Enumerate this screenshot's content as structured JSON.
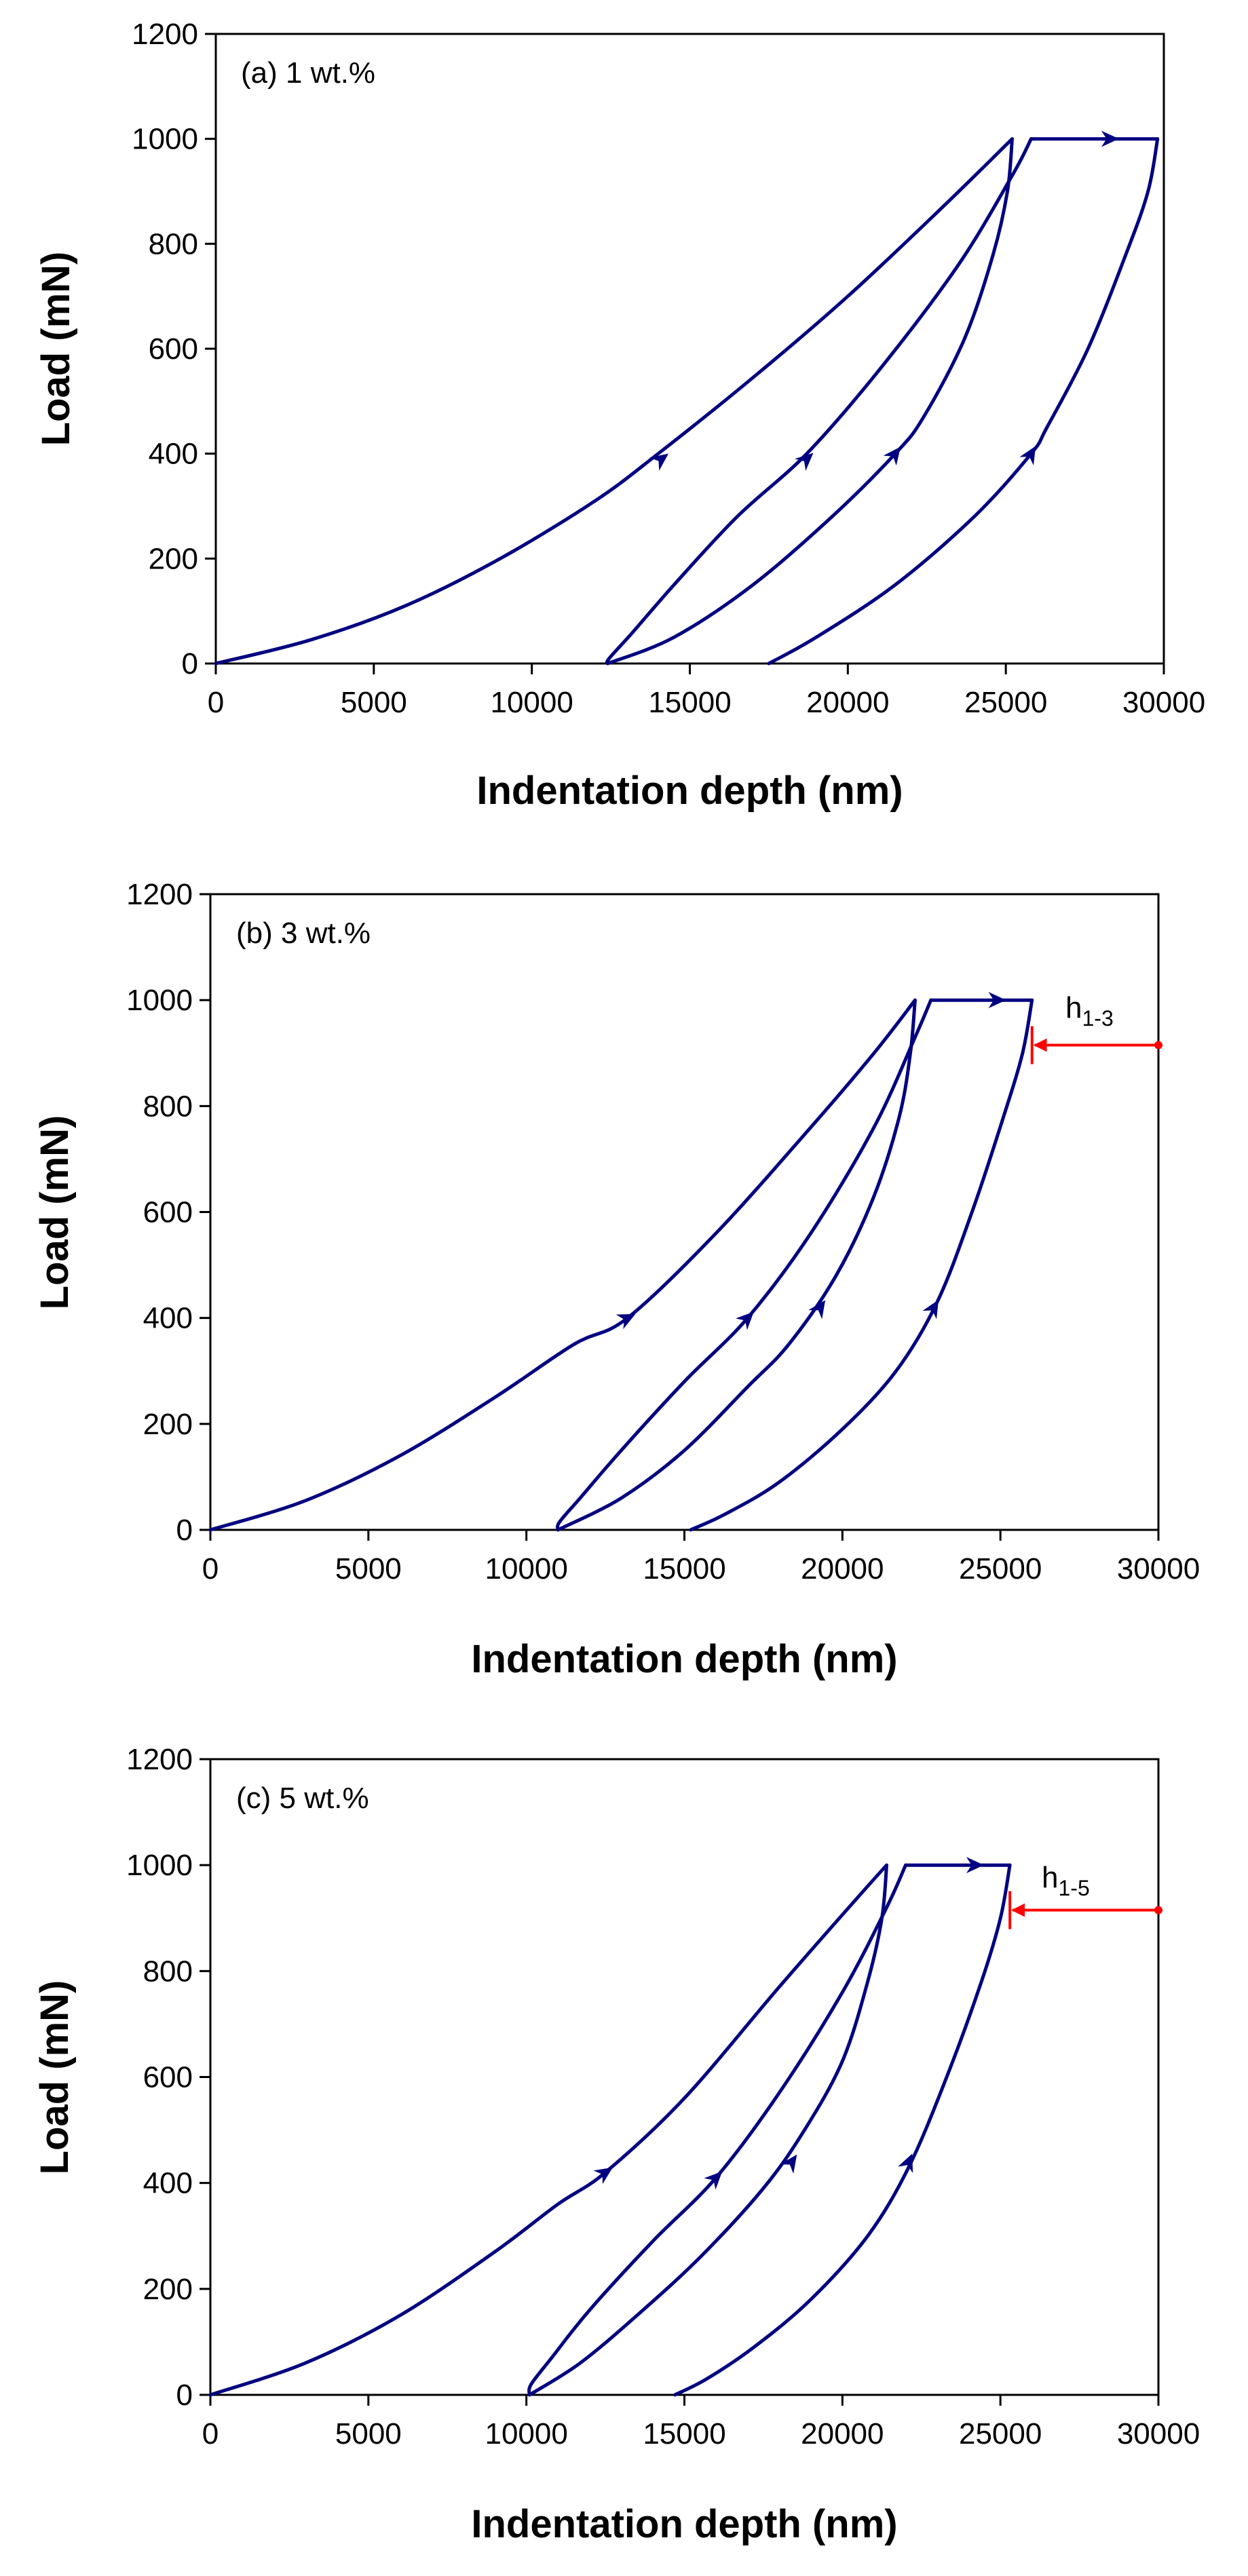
{
  "colors": {
    "curve": "#000080",
    "annotation": "#ff0000",
    "axis": "#000000",
    "background": "#ffffff"
  },
  "chart_data": [
    {
      "type": "line",
      "panel_label": "(a) 1 wt.%",
      "xlabel": "Indentation depth (nm)",
      "ylabel": "Load (mN)",
      "xlim": [
        0,
        30000
      ],
      "ylim": [
        0,
        1200
      ],
      "xticks": [
        "0",
        "5000",
        "10000",
        "15000",
        "20000",
        "25000",
        "30000"
      ],
      "yticks": [
        "0",
        "200",
        "400",
        "600",
        "800",
        "1000",
        "1200"
      ],
      "grid": false,
      "series": [
        {
          "name": "loading 1",
          "x": [
            0,
            3000,
            6000,
            9000,
            12000,
            14000,
            17000,
            20000,
            23000,
            25200
          ],
          "y": [
            0,
            45,
            110,
            200,
            310,
            400,
            545,
            700,
            870,
            1000
          ]
        },
        {
          "name": "unloading 1",
          "x": [
            25200,
            25050,
            24600,
            23700,
            22400,
            21500,
            19500,
            17000,
            14500,
            12400
          ],
          "y": [
            1000,
            900,
            780,
            620,
            470,
            400,
            280,
            150,
            50,
            0
          ]
        },
        {
          "name": "reloading 2",
          "x": [
            12400,
            12450,
            13200,
            14500,
            16500,
            18700,
            21000,
            23500,
            25200,
            25800
          ],
          "y": [
            0,
            10,
            60,
            150,
            280,
            400,
            560,
            760,
            930,
            1000
          ]
        },
        {
          "name": "hold",
          "x": [
            25800,
            28300,
            29800
          ],
          "y": [
            1000,
            1000,
            1000
          ]
        },
        {
          "name": "unloading 2",
          "x": [
            29800,
            29500,
            28800,
            27600,
            26300,
            25800,
            24000,
            21500,
            19000,
            17500
          ],
          "y": [
            1000,
            900,
            780,
            600,
            450,
            400,
            280,
            150,
            50,
            0
          ]
        }
      ],
      "arrows": [
        {
          "x": 14100,
          "y": 390,
          "direction": "forward"
        },
        {
          "x": 18700,
          "y": 390,
          "direction": "forward"
        },
        {
          "x": 28300,
          "y": 1000,
          "direction": "forward"
        },
        {
          "x": 21500,
          "y": 400,
          "direction": "reverse"
        },
        {
          "x": 25800,
          "y": 400,
          "direction": "reverse"
        }
      ],
      "annotation": null
    },
    {
      "type": "line",
      "panel_label": "(b) 3 wt.%",
      "xlabel": "Indentation depth (nm)",
      "ylabel": "Load (mN)",
      "xlim": [
        0,
        30000
      ],
      "ylim": [
        0,
        1200
      ],
      "xticks": [
        "0",
        "5000",
        "10000",
        "15000",
        "20000",
        "25000",
        "30000"
      ],
      "yticks": [
        "0",
        "200",
        "400",
        "600",
        "800",
        "1000",
        "1200"
      ],
      "grid": false,
      "series": [
        {
          "name": "loading 1",
          "x": [
            0,
            3000,
            6000,
            9000,
            11500,
            13200,
            16000,
            19000,
            21000,
            22300
          ],
          "y": [
            0,
            55,
            140,
            250,
            350,
            400,
            560,
            760,
            900,
            1000
          ]
        },
        {
          "name": "unloading 1",
          "x": [
            22300,
            22150,
            21800,
            21000,
            19800,
            18300,
            17000,
            15000,
            13000,
            11000
          ],
          "y": [
            1000,
            900,
            780,
            630,
            480,
            350,
            270,
            150,
            60,
            0
          ]
        },
        {
          "name": "reloading 2",
          "x": [
            11000,
            11050,
            11700,
            13000,
            15000,
            17000,
            19000,
            21000,
            22300,
            22800
          ],
          "y": [
            0,
            15,
            60,
            150,
            280,
            400,
            560,
            760,
            930,
            1000
          ]
        },
        {
          "name": "hold",
          "x": [
            22800,
            24900,
            26000
          ],
          "y": [
            1000,
            1000,
            1000
          ]
        },
        {
          "name": "unloading 2",
          "x": [
            26000,
            25700,
            25100,
            24100,
            23000,
            21700,
            20000,
            18000,
            16300,
            15200
          ],
          "y": [
            1000,
            900,
            780,
            600,
            430,
            300,
            190,
            90,
            30,
            0
          ]
        }
      ],
      "arrows": [
        {
          "x": 13200,
          "y": 400,
          "direction": "forward"
        },
        {
          "x": 17000,
          "y": 400,
          "direction": "forward"
        },
        {
          "x": 24900,
          "y": 1000,
          "direction": "forward"
        },
        {
          "x": 19300,
          "y": 420,
          "direction": "reverse"
        },
        {
          "x": 22900,
          "y": 420,
          "direction": "reverse"
        }
      ],
      "annotation": {
        "label_main": "h",
        "label_sub": "1-3",
        "x_start": 26000,
        "x_end": 30000,
        "y": 915
      }
    },
    {
      "type": "line",
      "panel_label": "(c) 5 wt.%",
      "xlabel": "Indentation depth (nm)",
      "ylabel": "Load (mN)",
      "xlim": [
        0,
        30000
      ],
      "ylim": [
        0,
        1200
      ],
      "xticks": [
        "0",
        "5000",
        "10000",
        "15000",
        "20000",
        "25000",
        "30000"
      ],
      "yticks": [
        "0",
        "200",
        "400",
        "600",
        "800",
        "1000",
        "1200"
      ],
      "grid": false,
      "series": [
        {
          "name": "loading 1",
          "x": [
            0,
            3000,
            6000,
            9000,
            11000,
            12500,
            15000,
            18000,
            20500,
            21400
          ],
          "y": [
            0,
            60,
            150,
            270,
            360,
            420,
            560,
            770,
            940,
            1000
          ]
        },
        {
          "name": "unloading 1",
          "x": [
            21400,
            21250,
            20800,
            20000,
            18800,
            17500,
            15500,
            13500,
            11700,
            10100
          ],
          "y": [
            1000,
            900,
            780,
            630,
            500,
            390,
            260,
            150,
            60,
            0
          ]
        },
        {
          "name": "reloading 2",
          "x": [
            10100,
            10150,
            10800,
            12000,
            14000,
            16000,
            18000,
            20000,
            21400,
            22000
          ],
          "y": [
            0,
            20,
            70,
            160,
            290,
            410,
            570,
            760,
            920,
            1000
          ]
        },
        {
          "name": "hold",
          "x": [
            22000,
            24200,
            25300
          ],
          "y": [
            1000,
            1000,
            1000
          ]
        },
        {
          "name": "unloading 2",
          "x": [
            25300,
            25000,
            24400,
            23300,
            22100,
            20800,
            19000,
            17200,
            15700,
            14700
          ],
          "y": [
            1000,
            900,
            780,
            600,
            430,
            300,
            180,
            90,
            30,
            0
          ]
        }
      ],
      "arrows": [
        {
          "x": 12500,
          "y": 420,
          "direction": "forward"
        },
        {
          "x": 16000,
          "y": 410,
          "direction": "forward"
        },
        {
          "x": 24200,
          "y": 1000,
          "direction": "forward"
        },
        {
          "x": 18400,
          "y": 440,
          "direction": "reverse"
        },
        {
          "x": 22100,
          "y": 440,
          "direction": "reverse"
        }
      ],
      "annotation": {
        "label_main": "h",
        "label_sub": "1-5",
        "x_start": 25300,
        "x_end": 30000,
        "y": 915
      }
    }
  ]
}
